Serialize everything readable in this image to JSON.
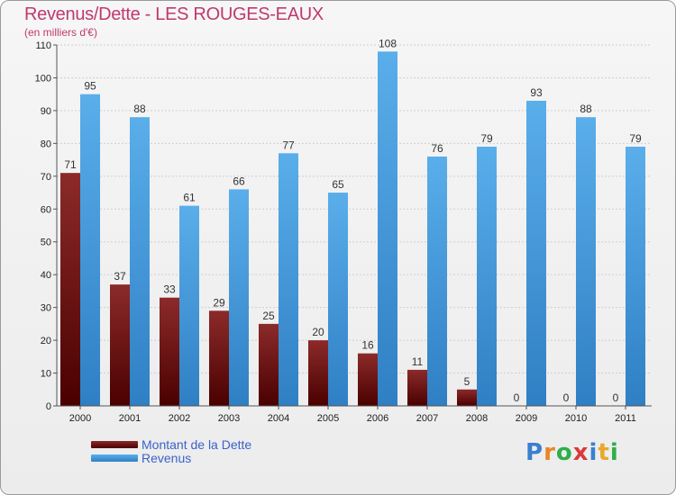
{
  "header": {
    "title": "Revenus/Dette - LES ROUGES-EAUX",
    "subtitle": "(en milliers d'€)"
  },
  "chart_data": {
    "type": "bar",
    "categories": [
      "2000",
      "2001",
      "2002",
      "2003",
      "2004",
      "2005",
      "2006",
      "2007",
      "2008",
      "2009",
      "2010",
      "2011"
    ],
    "series": [
      {
        "name": "Montant de la Dette",
        "color": "#7a1212",
        "values": [
          71,
          37,
          33,
          29,
          25,
          20,
          16,
          11,
          5,
          0,
          0,
          0
        ]
      },
      {
        "name": "Revenus",
        "color": "#4a9fe0",
        "values": [
          95,
          88,
          61,
          66,
          77,
          65,
          108,
          76,
          79,
          93,
          88,
          79
        ]
      }
    ],
    "ylim": [
      0,
      110
    ],
    "yticks": [
      0,
      10,
      20,
      30,
      40,
      50,
      60,
      70,
      80,
      90,
      100,
      110
    ],
    "grid": true,
    "legend_position": "bottom-left"
  },
  "logo": {
    "letters": [
      "P",
      "r",
      "o",
      "x",
      "i",
      "t",
      "i"
    ],
    "colors": [
      "#3a7fd0",
      "#e8862a",
      "#2fae4a",
      "#d83a3a",
      "#3a7fd0",
      "#e8a82a",
      "#2fae4a"
    ]
  }
}
